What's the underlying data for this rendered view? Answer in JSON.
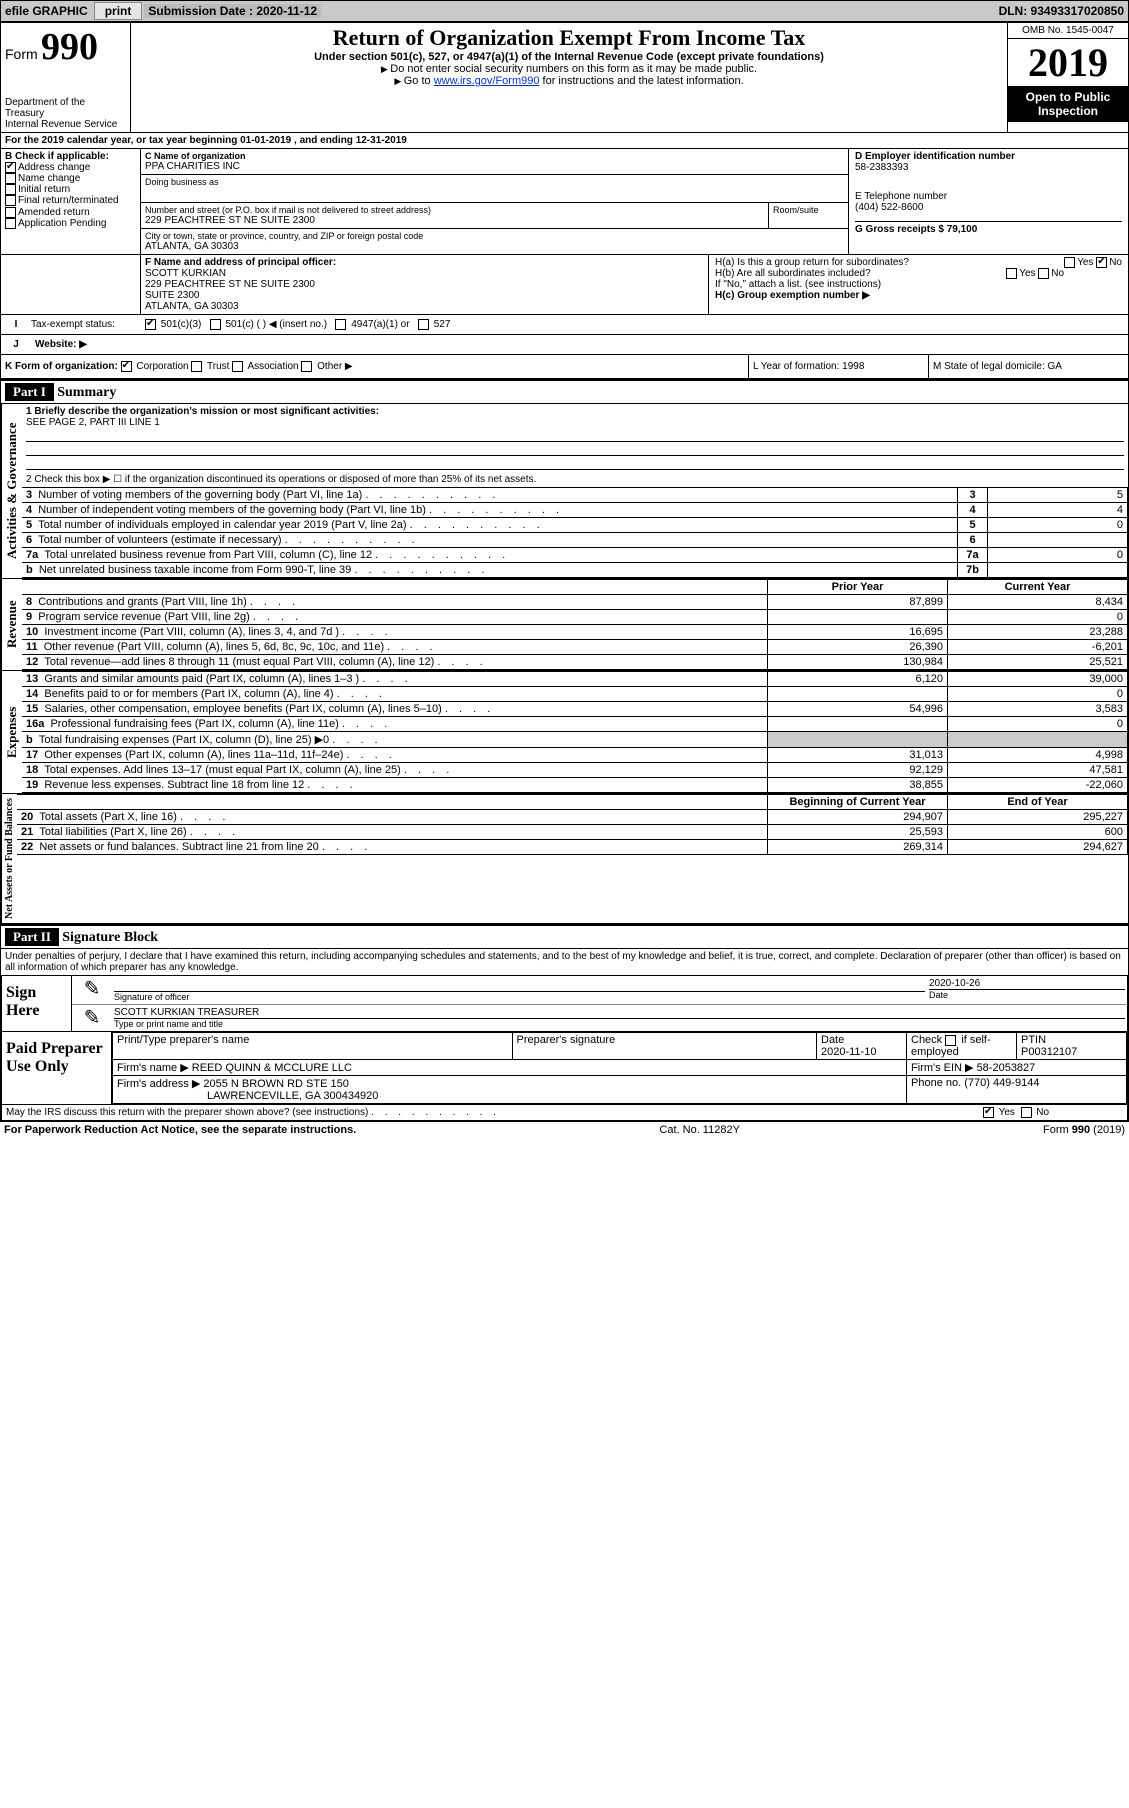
{
  "topbar": {
    "efile_label": "efile GRAPHIC",
    "print_btn": "print",
    "sub_label": "Submission Date : 2020-11-12",
    "dln": "DLN: 93493317020850"
  },
  "header": {
    "form_word": "Form",
    "form_num": "990",
    "dept1": "Department of the Treasury",
    "dept2": "Internal Revenue Service",
    "title": "Return of Organization Exempt From Income Tax",
    "subtitle": "Under section 501(c), 527, or 4947(a)(1) of the Internal Revenue Code (except private foundations)",
    "note1": "Do not enter social security numbers on this form as it may be made public.",
    "note2_pre": "Go to ",
    "note2_link": "www.irs.gov/Form990",
    "note2_post": " for instructions and the latest information.",
    "omb": "OMB No. 1545-0047",
    "year": "2019",
    "open1": "Open to Public",
    "open2": "Inspection"
  },
  "line_a": "For the 2019 calendar year, or tax year beginning 01-01-2019     , and ending 12-31-2019",
  "box_b": {
    "title": "B Check if applicable:",
    "addr_change": "Address change",
    "name_change": "Name change",
    "initial": "Initial return",
    "final": "Final return/terminated",
    "amended": "Amended return",
    "app_pending": "Application Pending"
  },
  "box_c": {
    "label": "C Name of organization",
    "org": "PPA CHARITIES INC",
    "dba_label": "Doing business as",
    "street_label": "Number and street (or P.O. box if mail is not delivered to street address)",
    "room_label": "Room/suite",
    "street": "229 PEACHTREE ST NE SUITE 2300",
    "city_label": "City or town, state or province, country, and ZIP or foreign postal code",
    "city": "ATLANTA, GA  30303"
  },
  "box_d": {
    "label": "D Employer identification number",
    "value": "58-2383393"
  },
  "box_e": {
    "label": "E Telephone number",
    "value": "(404) 522-8600"
  },
  "box_g": {
    "label": "G Gross receipts $ 79,100"
  },
  "box_f": {
    "label": "F  Name and address of principal officer:",
    "name": "SCOTT KURKIAN",
    "line1": "229 PEACHTREE ST NE SUITE 2300",
    "line2": "SUITE 2300",
    "line3": "ATLANTA, GA  30303"
  },
  "box_h": {
    "ha": "H(a)  Is this a group return for subordinates?",
    "hb": "H(b)  Are all subordinates included?",
    "hb_note": "If \"No,\" attach a list. (see instructions)",
    "hc": "H(c)  Group exemption number ▶",
    "yes": "Yes",
    "no": "No"
  },
  "box_i": {
    "label": "Tax-exempt status:",
    "c3": "501(c)(3)",
    "cOther": "501(c) (  ) ◀ (insert no.)",
    "a1": "4947(a)(1) or",
    "s527": "527"
  },
  "box_j": {
    "label": "Website: ▶"
  },
  "box_k": {
    "label": "K Form of organization:",
    "corp": "Corporation",
    "trust": "Trust",
    "assoc": "Association",
    "other": "Other ▶"
  },
  "box_l": "L Year of formation: 1998",
  "box_m": "M State of legal domicile: GA",
  "part1": {
    "label": "Part I",
    "title": "Summary"
  },
  "summary": {
    "vert1": "Activities & Governance",
    "line1_label": "1  Briefly describe the organization's mission or most significant activities:",
    "line1_text": "SEE PAGE 2, PART III LINE 1",
    "line2": "2   Check this box ▶ ☐  if the organization discontinued its operations or disposed of more than 25% of its net assets.",
    "rows_gov": [
      {
        "n": "3",
        "l": "Number of voting members of the governing body (Part VI, line 1a)",
        "b": "3",
        "v": "5"
      },
      {
        "n": "4",
        "l": "Number of independent voting members of the governing body (Part VI, line 1b)",
        "b": "4",
        "v": "4"
      },
      {
        "n": "5",
        "l": "Total number of individuals employed in calendar year 2019 (Part V, line 2a)",
        "b": "5",
        "v": "0"
      },
      {
        "n": "6",
        "l": "Total number of volunteers (estimate if necessary)",
        "b": "6",
        "v": ""
      },
      {
        "n": "7a",
        "l": "Total unrelated business revenue from Part VIII, column (C), line 12",
        "b": "7a",
        "v": "0"
      },
      {
        "n": "b",
        "l": "Net unrelated business taxable income from Form 990-T, line 39",
        "b": "7b",
        "v": ""
      }
    ],
    "vert2": "Revenue",
    "prior_hdr": "Prior Year",
    "curr_hdr": "Current Year",
    "rows_rev": [
      {
        "n": "8",
        "l": "Contributions and grants (Part VIII, line 1h)",
        "p": "87,899",
        "c": "8,434"
      },
      {
        "n": "9",
        "l": "Program service revenue (Part VIII, line 2g)",
        "p": "",
        "c": "0"
      },
      {
        "n": "10",
        "l": "Investment income (Part VIII, column (A), lines 3, 4, and 7d )",
        "p": "16,695",
        "c": "23,288"
      },
      {
        "n": "11",
        "l": "Other revenue (Part VIII, column (A), lines 5, 6d, 8c, 9c, 10c, and 11e)",
        "p": "26,390",
        "c": "-6,201"
      },
      {
        "n": "12",
        "l": "Total revenue—add lines 8 through 11 (must equal Part VIII, column (A), line 12)",
        "p": "130,984",
        "c": "25,521"
      }
    ],
    "vert3": "Expenses",
    "rows_exp": [
      {
        "n": "13",
        "l": "Grants and similar amounts paid (Part IX, column (A), lines 1–3 )",
        "p": "6,120",
        "c": "39,000"
      },
      {
        "n": "14",
        "l": "Benefits paid to or for members (Part IX, column (A), line 4)",
        "p": "",
        "c": "0"
      },
      {
        "n": "15",
        "l": "Salaries, other compensation, employee benefits (Part IX, column (A), lines 5–10)",
        "p": "54,996",
        "c": "3,583"
      },
      {
        "n": "16a",
        "l": "Professional fundraising fees (Part IX, column (A), line 11e)",
        "p": "",
        "c": "0"
      },
      {
        "n": "b",
        "l": "Total fundraising expenses (Part IX, column (D), line 25) ▶0",
        "p": "SHADE",
        "c": "SHADE"
      },
      {
        "n": "17",
        "l": "Other expenses (Part IX, column (A), lines 11a–11d, 11f–24e)",
        "p": "31,013",
        "c": "4,998"
      },
      {
        "n": "18",
        "l": "Total expenses. Add lines 13–17 (must equal Part IX, column (A), line 25)",
        "p": "92,129",
        "c": "47,581"
      },
      {
        "n": "19",
        "l": "Revenue less expenses. Subtract line 18 from line 12",
        "p": "38,855",
        "c": "-22,060"
      }
    ],
    "vert4": "Net Assets or Fund Balances",
    "boy_hdr": "Beginning of Current Year",
    "eoy_hdr": "End of Year",
    "rows_net": [
      {
        "n": "20",
        "l": "Total assets (Part X, line 16)",
        "p": "294,907",
        "c": "295,227"
      },
      {
        "n": "21",
        "l": "Total liabilities (Part X, line 26)",
        "p": "25,593",
        "c": "600"
      },
      {
        "n": "22",
        "l": "Net assets or fund balances. Subtract line 21 from line 20",
        "p": "269,314",
        "c": "294,627"
      }
    ]
  },
  "part2": {
    "label": "Part II",
    "title": "Signature Block"
  },
  "penalties": "Under penalties of perjury, I declare that I have examined this return, including accompanying schedules and statements, and to the best of my knowledge and belief, it is true, correct, and complete. Declaration of preparer (other than officer) is based on all information of which preparer has any knowledge.",
  "sign": {
    "here": "Sign Here",
    "sig_officer": "Signature of officer",
    "date_label": "Date",
    "date": "2020-10-26",
    "name": "SCOTT KURKIAN  TREASURER",
    "name_label": "Type or print name and title"
  },
  "paid": {
    "left": "Paid Preparer Use Only",
    "col1": "Print/Type preparer's name",
    "col2": "Preparer's signature",
    "col3": "Date",
    "date": "2020-11-10",
    "col4a": "Check",
    "col4b": "if self-employed",
    "col5": "PTIN",
    "ptin": "P00312107",
    "firm_name_l": "Firm's name    ▶",
    "firm_name": "REED QUINN & MCCLURE LLC",
    "firm_ein_l": "Firm's EIN ▶",
    "firm_ein": "58-2053827",
    "firm_addr_l": "Firm's address ▶",
    "firm_addr1": "2055 N BROWN RD STE 150",
    "firm_addr2": "LAWRENCEVILLE, GA  300434920",
    "phone_l": "Phone no. (770) 449-9144"
  },
  "discuss": "May the IRS discuss this return with the preparer shown above? (see instructions)",
  "footer": {
    "left": "For Paperwork Reduction Act Notice, see the separate instructions.",
    "mid": "Cat. No. 11282Y",
    "right_pre": "Form ",
    "right_bold": "990",
    "right_post": " (2019)"
  },
  "dots": ".  .  .  .  .  .  .  .  .  ."
}
